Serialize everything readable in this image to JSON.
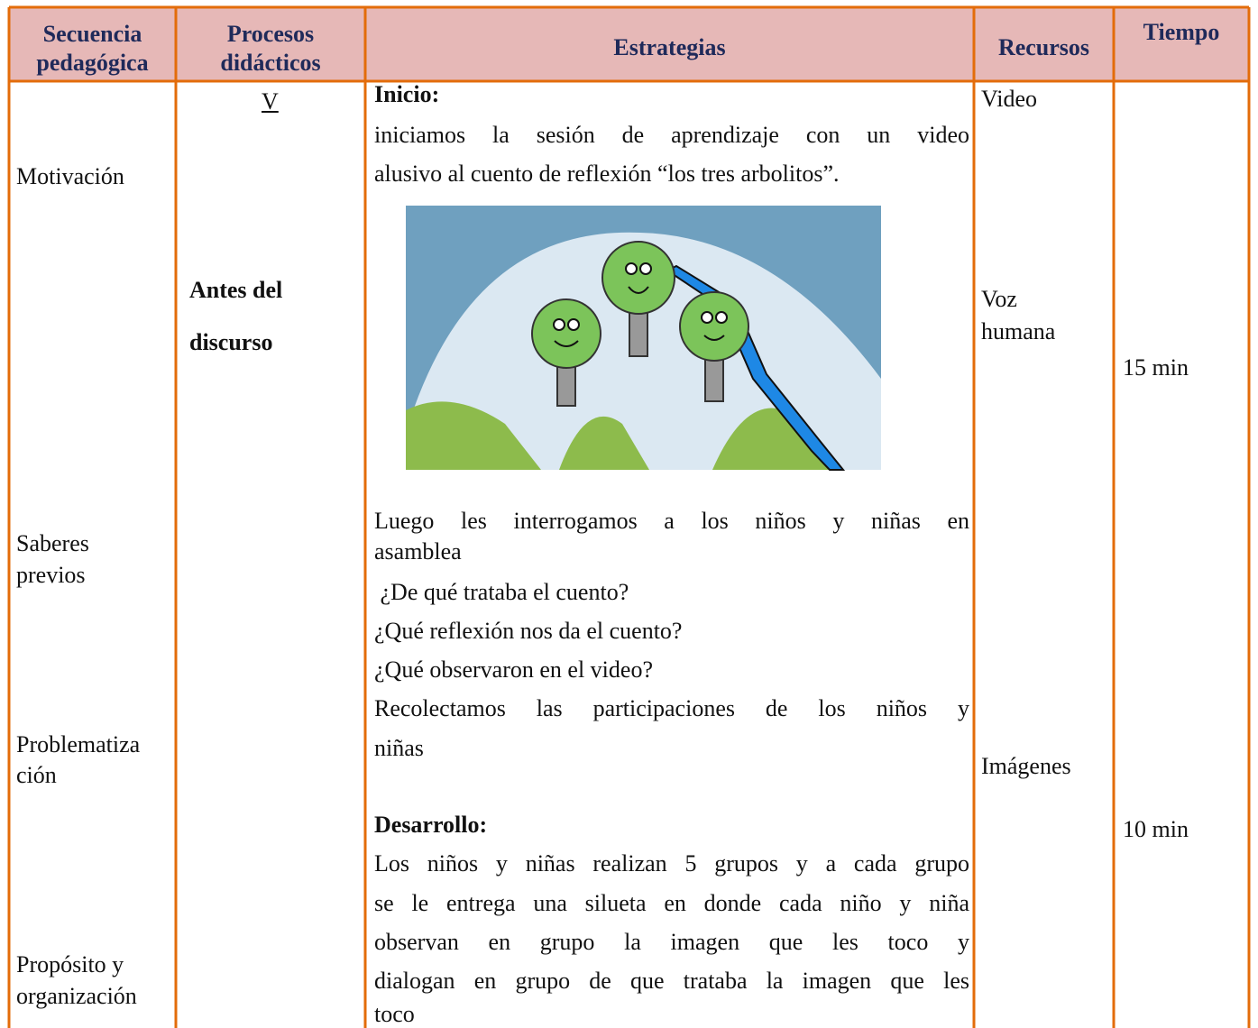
{
  "table": {
    "header": [
      [
        "Secuencia",
        "pedagógica"
      ],
      [
        "Procesos",
        "didácticos"
      ],
      [
        "Estrategias"
      ],
      [
        "Recursos"
      ],
      [
        "Tiempo"
      ]
    ],
    "secuencia": [
      [
        "Motivación"
      ],
      [
        "Saberes",
        "previos"
      ],
      [
        "Problematiza",
        "ción"
      ],
      [
        "Propósito y",
        "organización"
      ]
    ],
    "procesos": {
      "mark": "V",
      "stage": [
        "Antes del",
        "discurso"
      ]
    },
    "estrategias": {
      "inicio_title": "Inicio:",
      "inicio_lines": [
        "iniciamos la sesión de aprendizaje con un video",
        "alusivo al cuento de reflexión “los tres arbolitos”."
      ],
      "luego_lines": [
        "Luego les interrogamos a los niños y niñas en",
        "asamblea",
        " ¿De qué trataba el cuento?",
        "¿Qué reflexión nos da el cuento?",
        "¿Qué observaron en el video?",
        "Recolectamos las participaciones de los niños y",
        "niñas"
      ],
      "desarrollo_title": "Desarrollo:",
      "desarrollo_lines": [
        "Los niños y niñas realizan 5 grupos y a cada grupo",
        "se le entrega una silueta en donde cada niño y niña",
        "observan en grupo la imagen que les toco y",
        "dialogan en grupo de que trataba la imagen que les",
        "toco"
      ]
    },
    "recursos": [
      [
        "Video"
      ],
      [
        "Voz",
        "humana"
      ],
      [
        "Imágenes"
      ]
    ],
    "tiempo": [
      "15 min",
      "10 min"
    ]
  }
}
